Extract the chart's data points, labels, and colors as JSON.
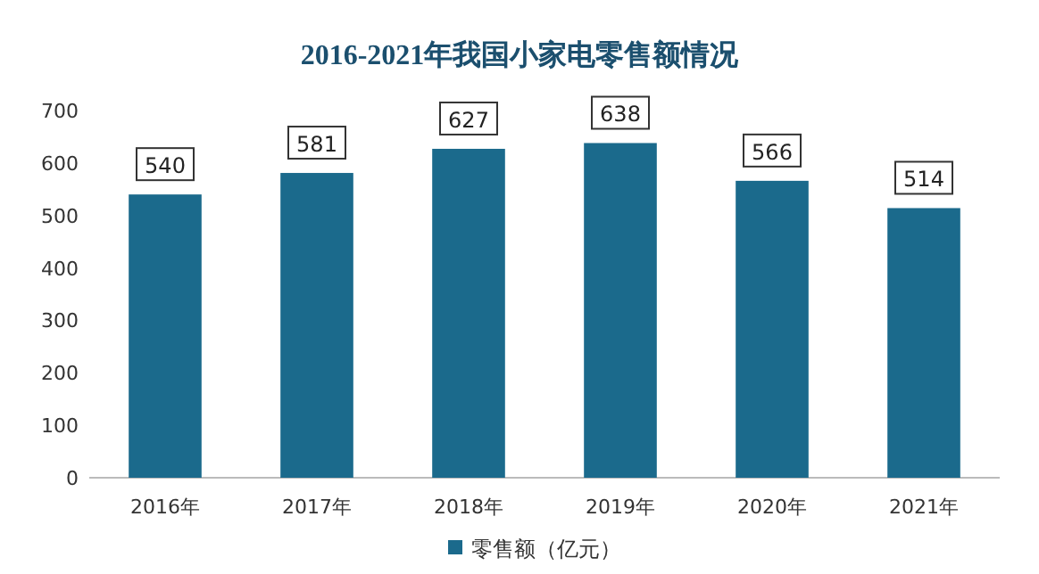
{
  "chart_data": {
    "type": "bar",
    "title": "2016-2021年我国小家电零售额情况",
    "categories": [
      "2016年",
      "2017年",
      "2018年",
      "2019年",
      "2020年",
      "2021年"
    ],
    "series": [
      {
        "name": "零售额（亿元）",
        "color": "#1b6a8c",
        "values": [
          540,
          581,
          627,
          638,
          566,
          514
        ]
      }
    ],
    "ylim": [
      0,
      700
    ],
    "yticks": [
      0,
      100,
      200,
      300,
      400,
      500,
      600,
      700
    ],
    "data_labels": true,
    "legend": "bottom"
  }
}
